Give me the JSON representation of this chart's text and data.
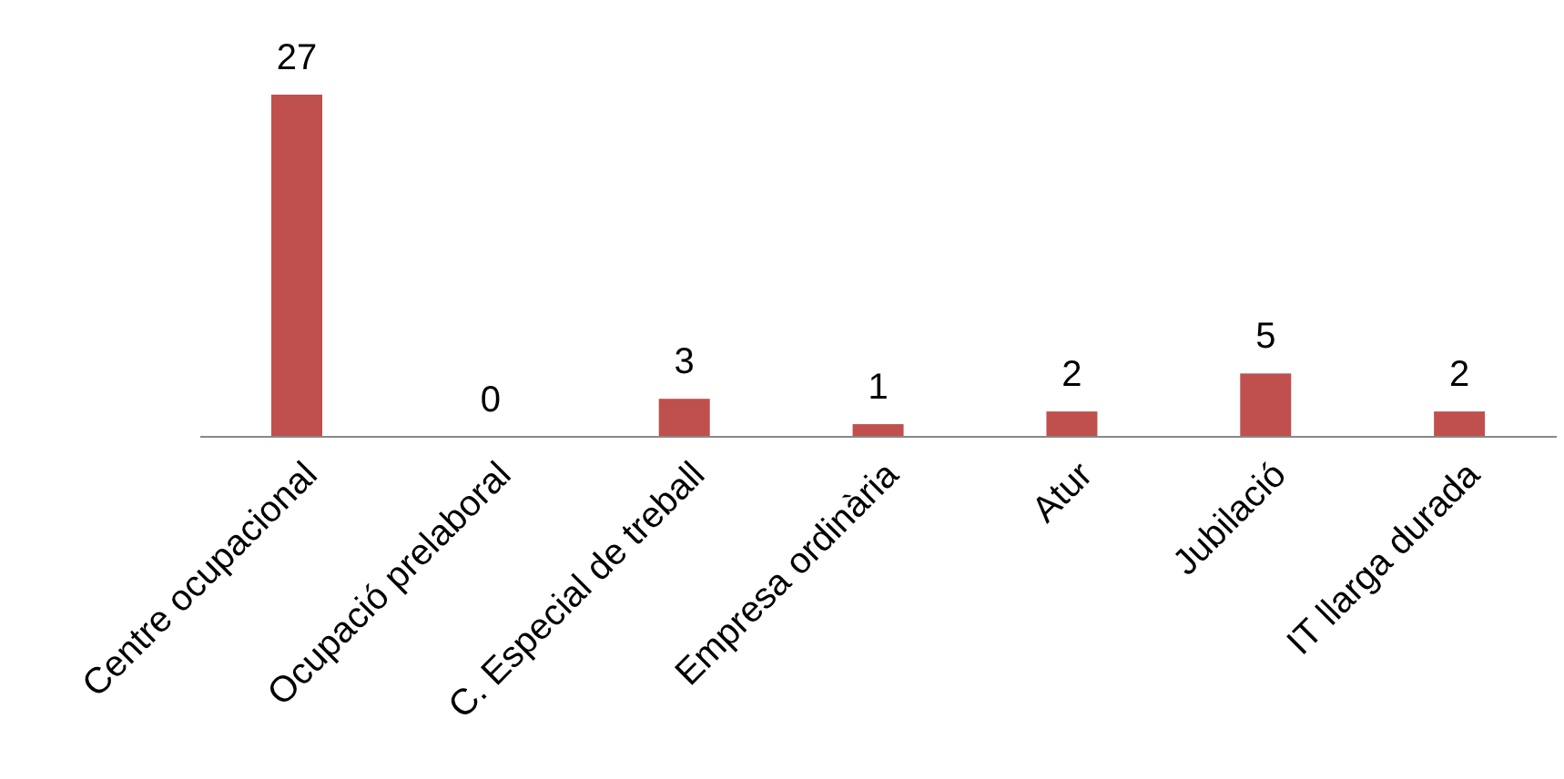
{
  "chart_data": {
    "type": "bar",
    "categories": [
      "Centre ocupacional",
      "Ocupació prelaboral",
      "C. Especial de treball",
      "Empresa ordinària",
      "Atur",
      "Jubilació",
      "IT llarga durada"
    ],
    "values": [
      27,
      0,
      3,
      1,
      2,
      5,
      2
    ],
    "color": "#c0504d",
    "data_labels": true
  }
}
